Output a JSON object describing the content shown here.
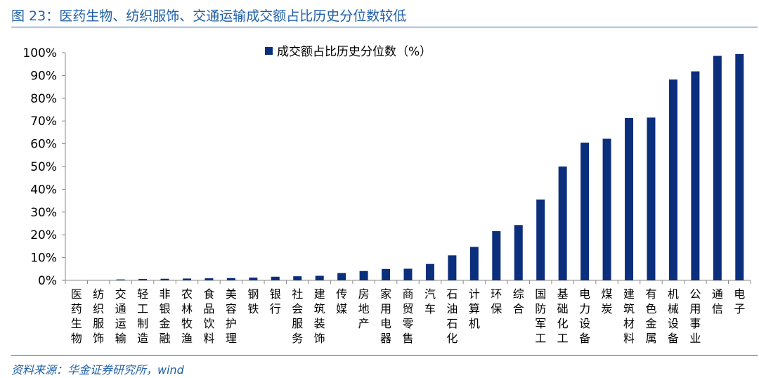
{
  "figure": {
    "title": "图 23：医药生物、纺织服饰、交通运输成交额占比历史分位数较低",
    "source": "资料来源：华金证券研究所，wind"
  },
  "colors": {
    "bar": "#0b2f7d",
    "accent": "#1f5fa8",
    "axis": "#888888"
  },
  "chart_data": {
    "type": "bar",
    "categories": [
      "医药生物",
      "纺织服饰",
      "交通运输",
      "轻工制造",
      "非银金融",
      "农林牧渔",
      "食品饮料",
      "美容护理",
      "钢铁",
      "银行",
      "社会服务",
      "建筑装饰",
      "传媒",
      "房地产",
      "家用电器",
      "商贸零售",
      "汽车",
      "石油石化",
      "计算机",
      "环保",
      "综合",
      "国防军工",
      "基础化工",
      "电力设备",
      "煤炭",
      "建筑材料",
      "有色金属",
      "机械设备",
      "公用事业",
      "通信",
      "电子"
    ],
    "series": [
      {
        "name": "成交额占比历史分位数（%）",
        "values": [
          0,
          0,
          0.4,
          0.6,
          0.7,
          0.8,
          0.9,
          1.0,
          1.2,
          1.6,
          1.8,
          2.0,
          3.2,
          4.1,
          5.0,
          5.1,
          7.2,
          11.0,
          14.7,
          21.6,
          24.3,
          35.5,
          50.0,
          60.5,
          62.2,
          71.3,
          71.5,
          88.2,
          91.8,
          98.6,
          99.4
        ]
      }
    ],
    "yticks": [
      "0%",
      "10%",
      "20%",
      "30%",
      "40%",
      "50%",
      "60%",
      "70%",
      "80%",
      "90%",
      "100%"
    ],
    "ylim": [
      0,
      100
    ],
    "grid": false,
    "legend_position": "top-center"
  }
}
